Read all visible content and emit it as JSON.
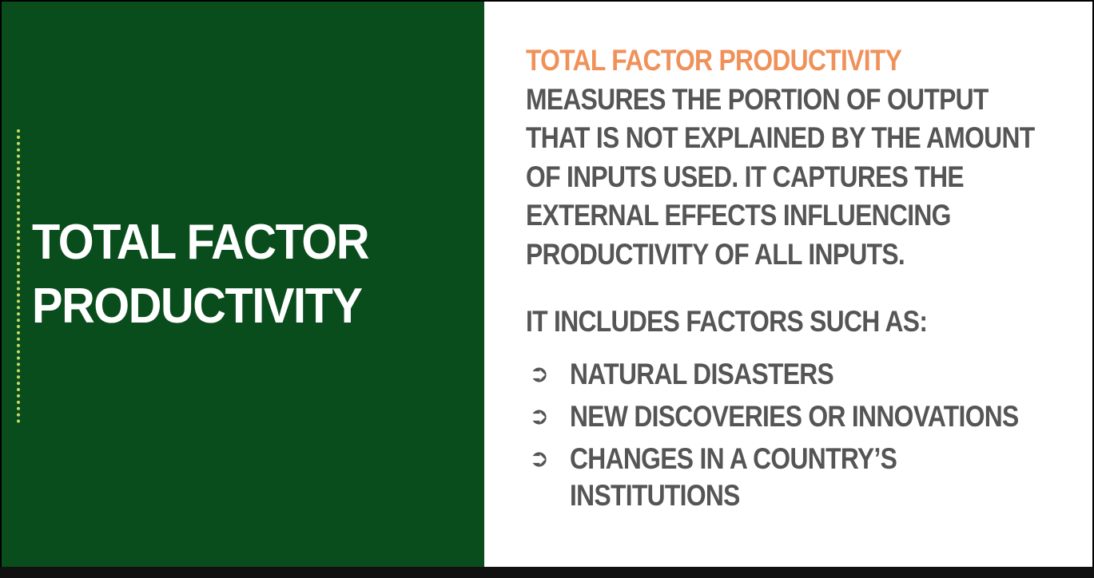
{
  "left_panel": {
    "title_line1": "TOTAL FACTOR",
    "title_line2": "PRODUCTIVITY"
  },
  "right_panel": {
    "definition_term": "TOTAL FACTOR PRODUCTIVITY",
    "definition_lines": [
      "MEASURES THE PORTION OF OUTPUT",
      "THAT IS NOT EXPLAINED BY THE AMOUNT",
      "OF INPUTS USED. IT CAPTURES THE",
      "EXTERNAL EFFECTS INFLUENCING",
      "PRODUCTIVITY OF ALL INPUTS."
    ],
    "factors_heading": "IT INCLUDES FACTORS SUCH AS:",
    "bullet_icon": "arrow-bullet-icon",
    "factors": [
      {
        "lines": [
          "NATURAL DISASTERS"
        ]
      },
      {
        "lines": [
          "NEW DISCOVERIES OR INNOVATIONS"
        ]
      },
      {
        "lines": [
          "CHANGES IN A COUNTRY’S",
          "INSTITUTIONS"
        ]
      }
    ]
  },
  "colors": {
    "left_background": "#0a4d1d",
    "accent": "#f0915a",
    "body_text": "#555555",
    "dotted_line": "#c6d96a"
  }
}
